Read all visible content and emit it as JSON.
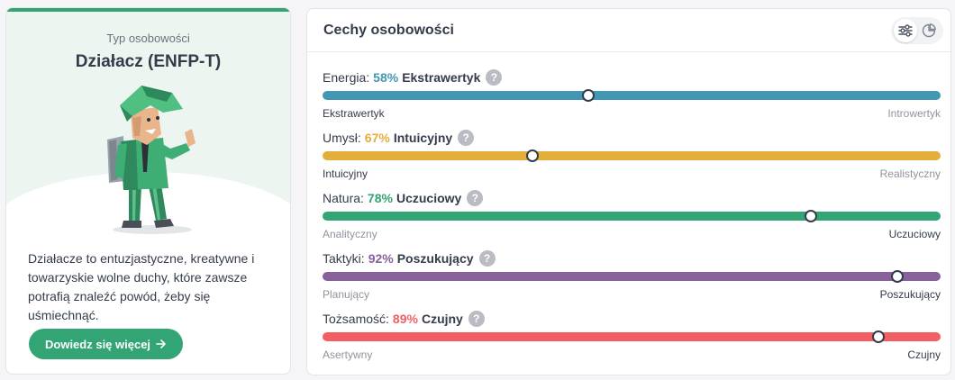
{
  "personality": {
    "type_label": "Typ osobowości",
    "type_name": "Działacz (ENFP-T)",
    "description": "Działacze to entuzjastyczne, kreatywne i towarzyskie wolne duchy, które zawsze potrafią znaleźć powód, żeby się uśmiechnąć.",
    "learn_more_label": "Dowiedz się więcej",
    "accent_color": "#33a474"
  },
  "traits_panel": {
    "title": "Cechy osobowości",
    "view_toggle": [
      "sliders-icon",
      "pie-chart-icon"
    ],
    "active_view": "sliders-icon",
    "traits": [
      {
        "label": "Energia:",
        "percent": "58%",
        "value": 0.58,
        "marker_position": 0.43,
        "name": "Ekstrawertyk",
        "left_pole": "Ekstrawertyk",
        "right_pole": "Introwertyk",
        "dominant": "left",
        "color": "#4298b4"
      },
      {
        "label": "Umysł:",
        "percent": "67%",
        "value": 0.67,
        "marker_position": 0.34,
        "name": "Intuicyjny",
        "left_pole": "Intuicyjny",
        "right_pole": "Realistyczny",
        "dominant": "left",
        "color": "#e4ae3a"
      },
      {
        "label": "Natura:",
        "percent": "78%",
        "value": 0.78,
        "marker_position": 0.79,
        "name": "Uczuciowy",
        "left_pole": "Analityczny",
        "right_pole": "Uczuciowy",
        "dominant": "right",
        "color": "#33a474"
      },
      {
        "label": "Taktyki:",
        "percent": "92%",
        "value": 0.92,
        "marker_position": 0.93,
        "name": "Poszukujący",
        "left_pole": "Planujący",
        "right_pole": "Poszukujący",
        "dominant": "right",
        "color": "#88619a"
      },
      {
        "label": "Tożsamość:",
        "percent": "89%",
        "value": 0.89,
        "marker_position": 0.9,
        "name": "Czujny",
        "left_pole": "Asertywny",
        "right_pole": "Czujny",
        "dominant": "right",
        "color": "#f25e62"
      }
    ]
  }
}
